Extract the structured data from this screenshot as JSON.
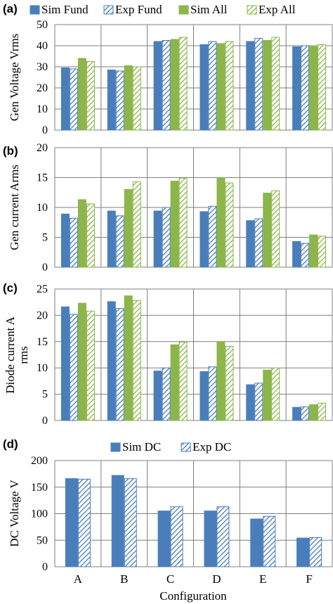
{
  "colors": {
    "sim_fund": "#4a7ebb",
    "exp_fund": "#4a7ebb",
    "sim_all": "#8cb54a",
    "exp_all": "#8cb54a",
    "gridline": "#7f7f7f",
    "frame": "#7f7f7f"
  },
  "xlabel": "Configuration",
  "chart_data": [
    {
      "panel": "(a)",
      "type": "bar",
      "ylabel": "Gen Voltage Vrms",
      "ylim": [
        0,
        50
      ],
      "yticks": [
        0,
        10,
        20,
        30,
        40,
        50
      ],
      "categories": [
        "A",
        "B",
        "C",
        "D",
        "E",
        "F"
      ],
      "grid": true,
      "legend_position": "top",
      "series": [
        {
          "name": "Sim Fund",
          "pattern": "solid",
          "color_key": "sim_fund",
          "values": [
            29.5,
            28.5,
            42,
            40.5,
            42,
            39.5
          ]
        },
        {
          "name": "Exp Fund",
          "pattern": "hatched",
          "color_key": "exp_fund",
          "values": [
            29,
            28,
            42.5,
            42,
            43.5,
            40
          ]
        },
        {
          "name": "Sim All",
          "pattern": "solid",
          "color_key": "sim_all",
          "values": [
            34,
            30.5,
            43,
            41,
            42.5,
            40
          ]
        },
        {
          "name": "Exp All",
          "pattern": "hatched",
          "color_key": "exp_all",
          "values": [
            32.5,
            30,
            44,
            42,
            44,
            40.5
          ]
        }
      ]
    },
    {
      "panel": "(b)",
      "type": "bar",
      "ylabel": "Gen current Arms",
      "ylim": [
        0,
        20
      ],
      "yticks": [
        0,
        5,
        10,
        15,
        20
      ],
      "categories": [
        "A",
        "B",
        "C",
        "D",
        "E",
        "F"
      ],
      "grid": true,
      "series": [
        {
          "name": "Sim Fund",
          "pattern": "solid",
          "color_key": "sim_fund",
          "values": [
            8.9,
            9.4,
            9.4,
            9.3,
            7.8,
            4.3
          ]
        },
        {
          "name": "Exp Fund",
          "pattern": "hatched",
          "color_key": "exp_fund",
          "values": [
            8.2,
            8.6,
            10,
            10.2,
            8.1,
            4.0
          ]
        },
        {
          "name": "Sim All",
          "pattern": "solid",
          "color_key": "sim_all",
          "values": [
            11.3,
            13,
            14.4,
            15,
            12.4,
            5.4
          ]
        },
        {
          "name": "Exp All",
          "pattern": "hatched",
          "color_key": "exp_all",
          "values": [
            10.6,
            14.3,
            14.9,
            14.1,
            12.8,
            5.2
          ]
        }
      ]
    },
    {
      "panel": "(c)",
      "type": "bar",
      "ylabel": "Diode current A rms",
      "ylabel_lines": [
        "Diode current A",
        "rms"
      ],
      "ylim": [
        0,
        25
      ],
      "yticks": [
        0,
        5,
        10,
        15,
        20,
        25
      ],
      "categories": [
        "A",
        "B",
        "C",
        "D",
        "E",
        "F"
      ],
      "grid": true,
      "series": [
        {
          "name": "Sim Fund",
          "pattern": "solid",
          "color_key": "sim_fund",
          "values": [
            21.6,
            22.6,
            9.4,
            9.3,
            6.8,
            2.5
          ]
        },
        {
          "name": "Exp Fund",
          "pattern": "hatched",
          "color_key": "exp_fund",
          "values": [
            20.2,
            21.3,
            10,
            10.2,
            7.1,
            2.6
          ]
        },
        {
          "name": "Sim All",
          "pattern": "solid",
          "color_key": "sim_all",
          "values": [
            22.3,
            23.7,
            14.4,
            15,
            9.6,
            3.0
          ]
        },
        {
          "name": "Exp All",
          "pattern": "hatched",
          "color_key": "exp_all",
          "values": [
            20.8,
            22.8,
            14.9,
            14.1,
            10,
            3.3
          ]
        }
      ]
    },
    {
      "panel": "(d)",
      "type": "bar",
      "ylabel": "DC Voltage V",
      "xlabel": "Configuration",
      "ylim": [
        0,
        200
      ],
      "yticks": [
        0,
        50,
        100,
        150,
        200
      ],
      "categories": [
        "A",
        "B",
        "C",
        "D",
        "E",
        "F"
      ],
      "grid": true,
      "legend_position": "top",
      "series": [
        {
          "name": "Sim DC",
          "pattern": "solid",
          "color_key": "sim_fund",
          "values": [
            166,
            172,
            105,
            105,
            90,
            54
          ]
        },
        {
          "name": "Exp DC",
          "pattern": "hatched",
          "color_key": "exp_fund",
          "values": [
            165,
            166,
            113,
            113,
            95,
            55
          ]
        }
      ]
    }
  ]
}
